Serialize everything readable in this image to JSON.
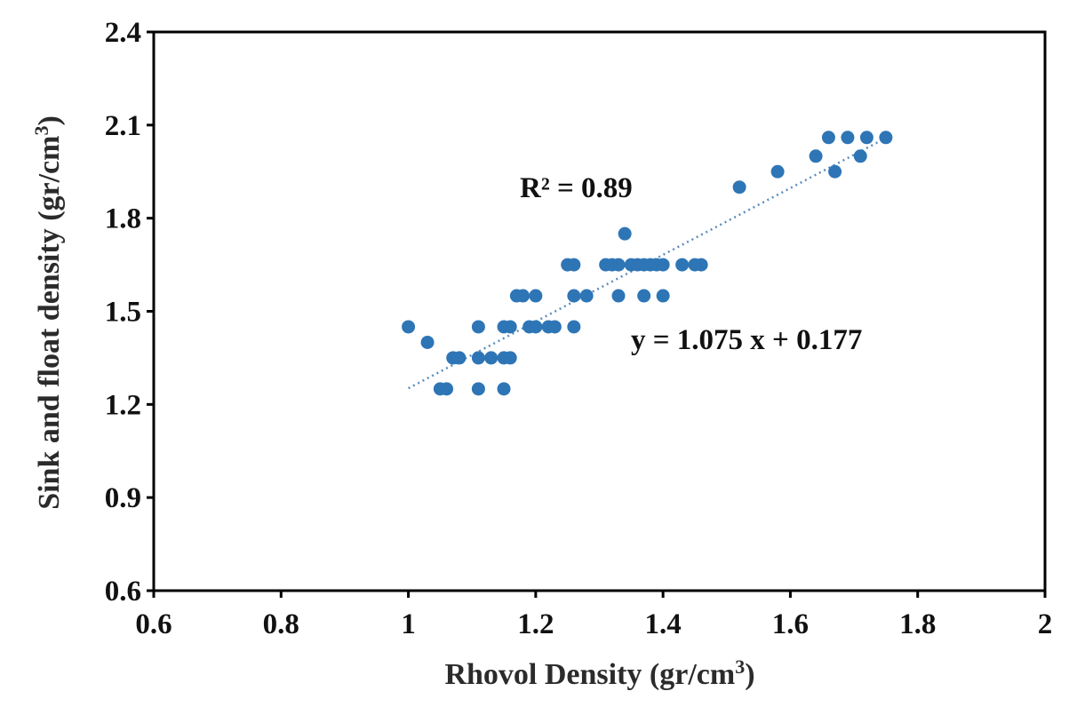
{
  "chart_data": {
    "type": "scatter",
    "xlabel": "Rhovol Density (gr/cm",
    "xlabel_sup": "3",
    "xlabel_end": ")",
    "ylabel": "Sink and float density (gr/cm",
    "ylabel_sup": "3",
    "ylabel_end": ")",
    "xlim": [
      0.6,
      2.0
    ],
    "ylim": [
      0.6,
      2.4
    ],
    "xticks": [
      0.6,
      0.8,
      1.0,
      1.2,
      1.4,
      1.6,
      1.8,
      2.0
    ],
    "xtick_labels": [
      "0.6",
      "0.8",
      "1",
      "1.2",
      "1.4",
      "1.6",
      "1.8",
      "2"
    ],
    "yticks": [
      0.6,
      0.9,
      1.2,
      1.5,
      1.8,
      2.1,
      2.4
    ],
    "ytick_labels": [
      "0.6",
      "0.9",
      "1.2",
      "1.5",
      "1.8",
      "2.1",
      "2.4"
    ],
    "grid": false,
    "marker_color": "#2E75B6",
    "trendline_color": "#5B8DBE",
    "points": [
      [
        1.0,
        1.45
      ],
      [
        1.03,
        1.4
      ],
      [
        1.05,
        1.25
      ],
      [
        1.06,
        1.25
      ],
      [
        1.07,
        1.35
      ],
      [
        1.08,
        1.35
      ],
      [
        1.11,
        1.45
      ],
      [
        1.11,
        1.35
      ],
      [
        1.11,
        1.25
      ],
      [
        1.13,
        1.35
      ],
      [
        1.15,
        1.45
      ],
      [
        1.15,
        1.35
      ],
      [
        1.16,
        1.45
      ],
      [
        1.16,
        1.35
      ],
      [
        1.15,
        1.25
      ],
      [
        1.17,
        1.55
      ],
      [
        1.18,
        1.55
      ],
      [
        1.19,
        1.45
      ],
      [
        1.2,
        1.55
      ],
      [
        1.2,
        1.45
      ],
      [
        1.22,
        1.45
      ],
      [
        1.23,
        1.45
      ],
      [
        1.25,
        1.65
      ],
      [
        1.26,
        1.65
      ],
      [
        1.26,
        1.55
      ],
      [
        1.26,
        1.45
      ],
      [
        1.28,
        1.55
      ],
      [
        1.31,
        1.65
      ],
      [
        1.32,
        1.65
      ],
      [
        1.33,
        1.55
      ],
      [
        1.33,
        1.65
      ],
      [
        1.34,
        1.75
      ],
      [
        1.35,
        1.65
      ],
      [
        1.36,
        1.65
      ],
      [
        1.37,
        1.65
      ],
      [
        1.37,
        1.55
      ],
      [
        1.38,
        1.65
      ],
      [
        1.39,
        1.65
      ],
      [
        1.4,
        1.65
      ],
      [
        1.4,
        1.55
      ],
      [
        1.43,
        1.65
      ],
      [
        1.45,
        1.65
      ],
      [
        1.46,
        1.65
      ],
      [
        1.52,
        1.9
      ],
      [
        1.58,
        1.95
      ],
      [
        1.64,
        2.0
      ],
      [
        1.66,
        2.06
      ],
      [
        1.67,
        1.95
      ],
      [
        1.69,
        2.06
      ],
      [
        1.71,
        2.0
      ],
      [
        1.72,
        2.06
      ],
      [
        1.75,
        2.06
      ]
    ],
    "trendline": {
      "slope": 1.075,
      "intercept": 0.177,
      "x_range": [
        1.0,
        1.75
      ]
    },
    "annotations": {
      "r2": "R² = 0.89",
      "equation": "y = 1.075 x + 0.177"
    }
  }
}
